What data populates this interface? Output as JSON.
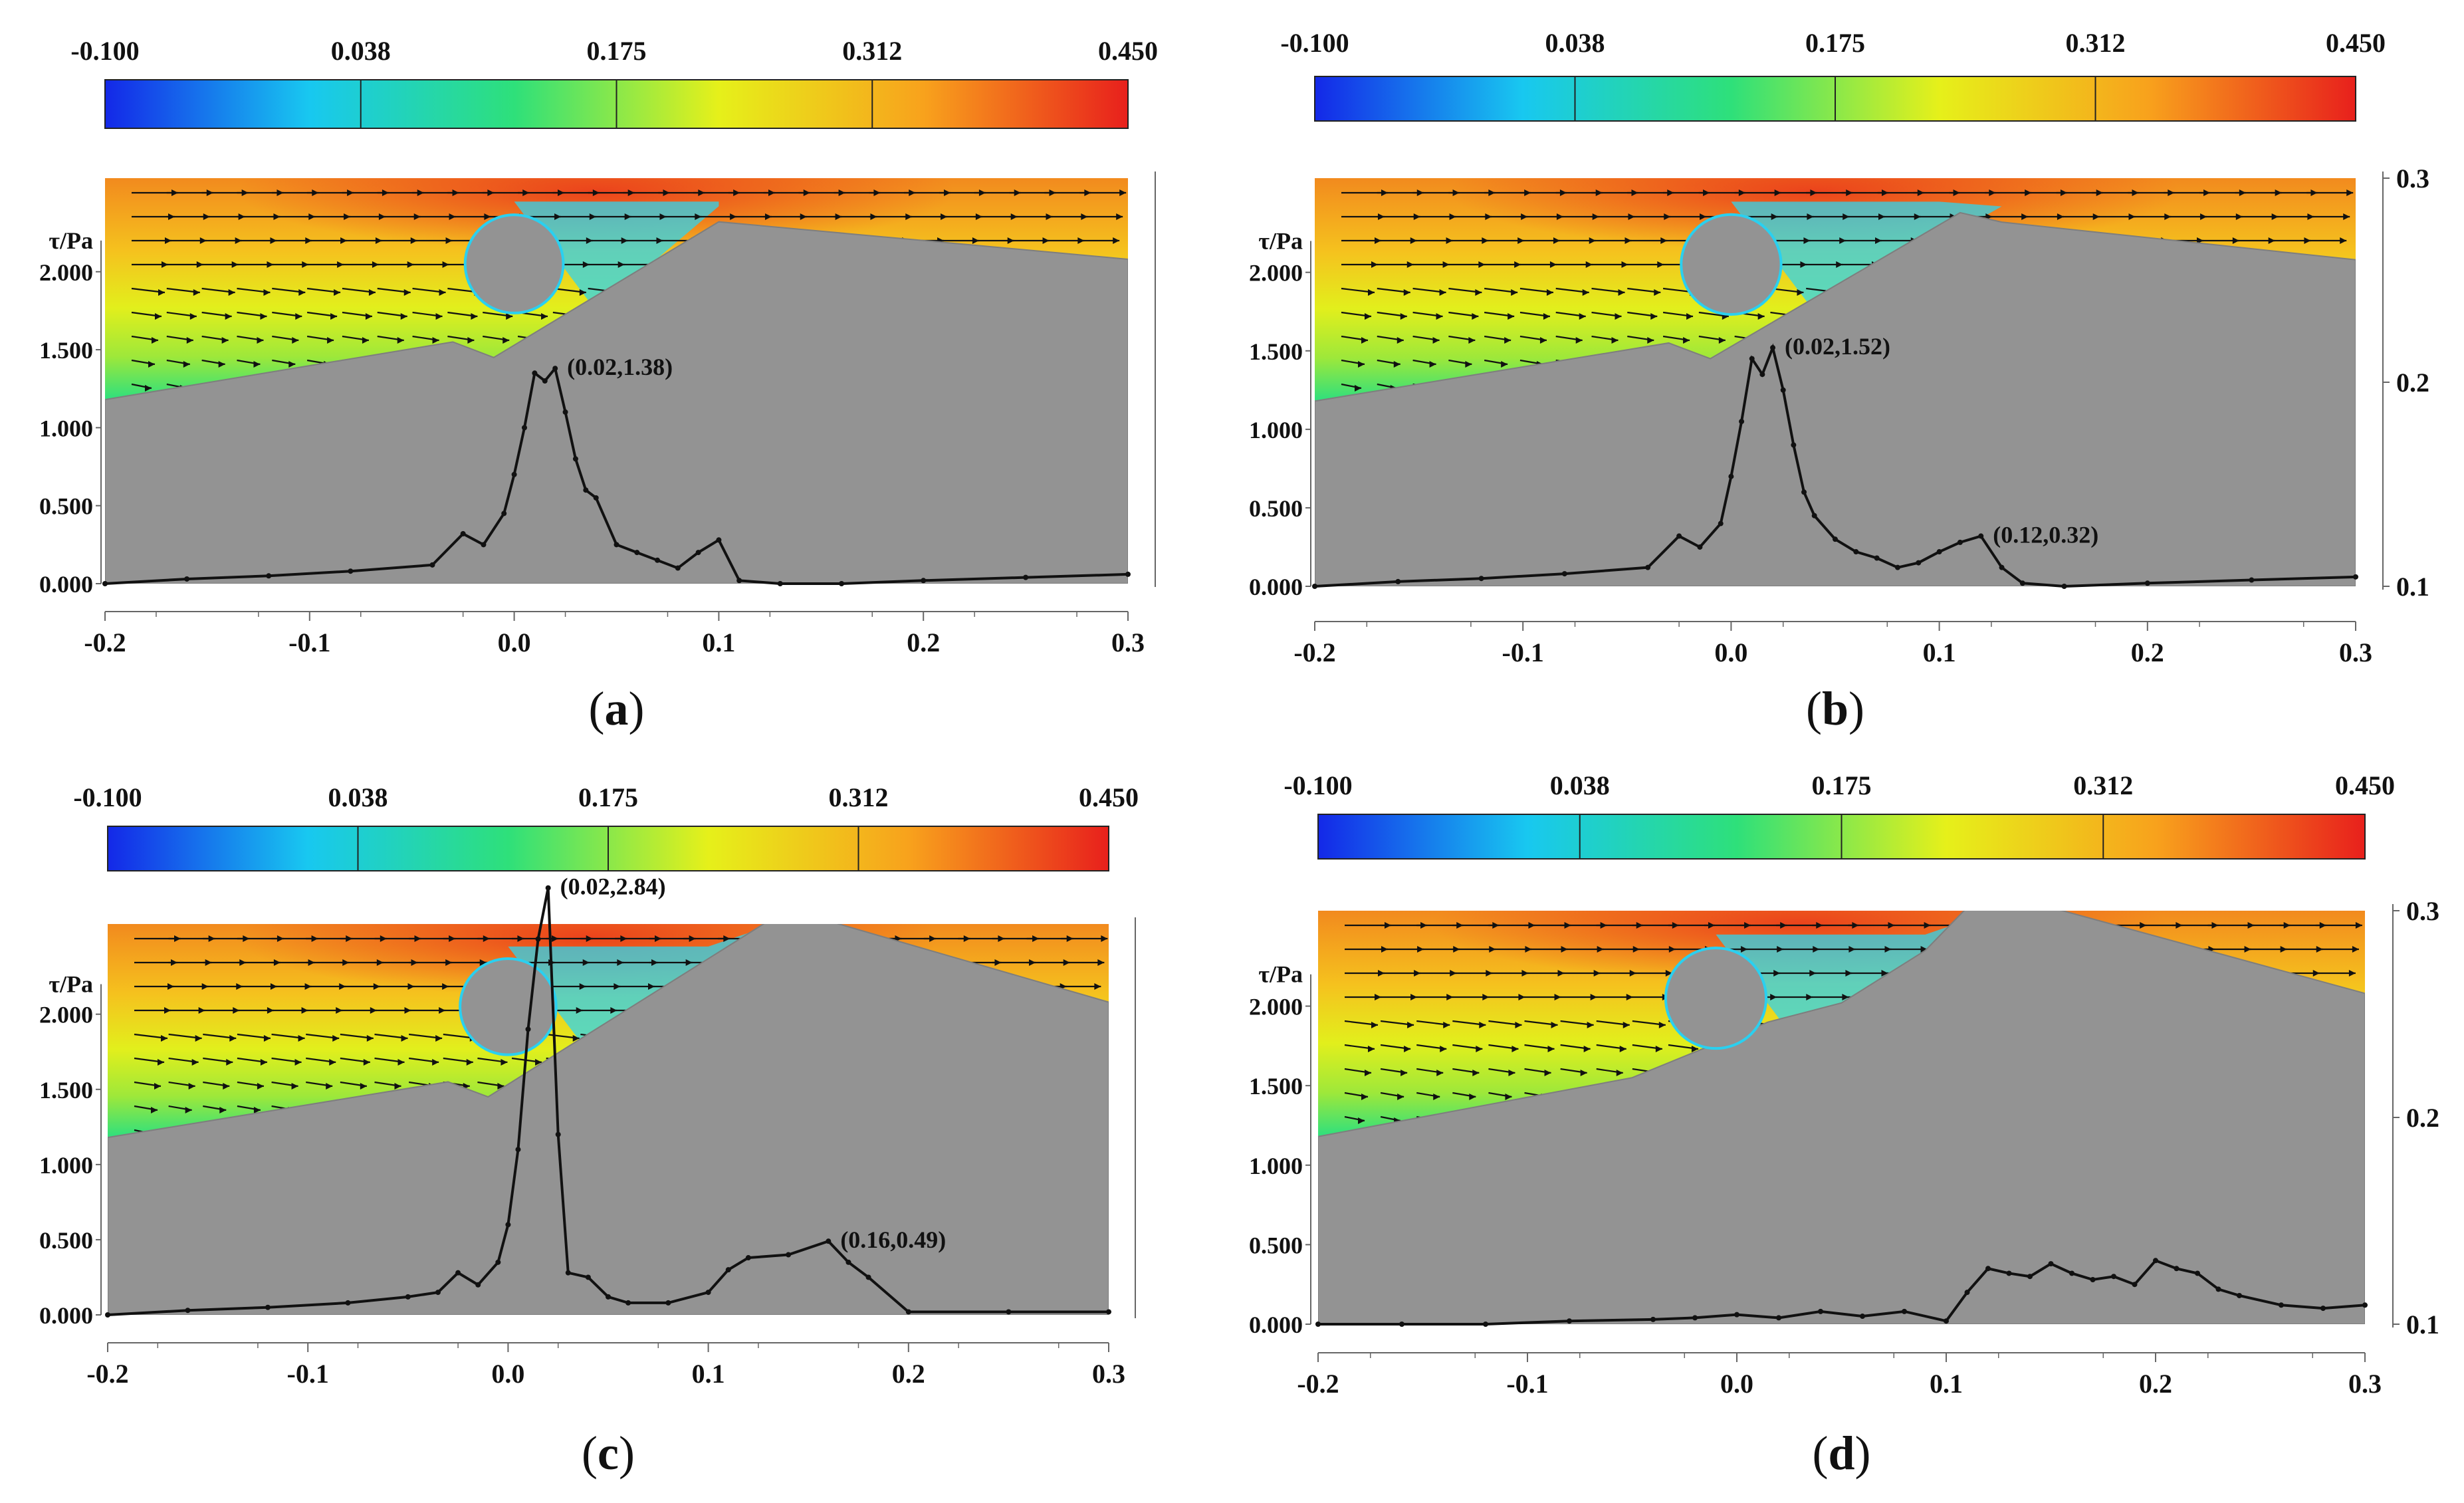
{
  "chart_data": [
    {
      "type": "line",
      "panel_label": "a",
      "colorbar": {
        "ticks": [
          "-0.100",
          "0.038",
          "0.175",
          "0.312",
          "0.450"
        ],
        "range": [
          -0.1,
          0.45
        ],
        "colors": [
          "#1428e8",
          "#18c8f0",
          "#2ee07a",
          "#e6f01a",
          "#f8a21c",
          "#e8201c"
        ]
      },
      "ylabel": "τ/Pa",
      "yticks": [
        "0.000",
        "0.500",
        "1.000",
        "1.500",
        "2.000"
      ],
      "ylim": [
        0,
        2.6
      ],
      "xticks": [
        "-0.2",
        "-0.1",
        "0.0",
        "0.1",
        "0.2",
        "0.3"
      ],
      "xlim": [
        -0.2,
        0.3
      ],
      "right_axis_ticks": [],
      "pipe": {
        "x": 0.0,
        "y": 2.05,
        "r": 0.024
      },
      "bed": {
        "x": [
          -0.2,
          -0.03,
          -0.01,
          0.1,
          0.3
        ],
        "z": [
          1.18,
          1.55,
          1.45,
          2.32,
          2.08
        ]
      },
      "annotations": [
        {
          "text": "(0.02,1.38)",
          "x": 0.02,
          "y": 1.38
        }
      ],
      "series": [
        {
          "name": "shear stress",
          "x": [
            -0.2,
            -0.16,
            -0.12,
            -0.08,
            -0.04,
            -0.025,
            -0.015,
            -0.005,
            0.0,
            0.005,
            0.01,
            0.015,
            0.02,
            0.025,
            0.03,
            0.035,
            0.04,
            0.05,
            0.06,
            0.07,
            0.08,
            0.09,
            0.1,
            0.11,
            0.13,
            0.16,
            0.2,
            0.25,
            0.3
          ],
          "y": [
            0.0,
            0.03,
            0.05,
            0.08,
            0.12,
            0.32,
            0.25,
            0.45,
            0.7,
            1.0,
            1.35,
            1.3,
            1.38,
            1.1,
            0.8,
            0.6,
            0.55,
            0.25,
            0.2,
            0.15,
            0.1,
            0.2,
            0.28,
            0.02,
            0.0,
            0.0,
            0.02,
            0.04,
            0.06
          ]
        }
      ]
    },
    {
      "type": "line",
      "panel_label": "b",
      "colorbar": {
        "ticks": [
          "-0.100",
          "0.038",
          "0.175",
          "0.312",
          "0.450"
        ],
        "range": [
          -0.1,
          0.45
        ],
        "colors": [
          "#1428e8",
          "#18c8f0",
          "#2ee07a",
          "#e6f01a",
          "#f8a21c",
          "#e8201c"
        ]
      },
      "ylabel": "τ/Pa",
      "yticks": [
        "0.000",
        "0.500",
        "1.000",
        "1.500",
        "2.000"
      ],
      "ylim": [
        0,
        2.6
      ],
      "xticks": [
        "-0.2",
        "-0.1",
        "0.0",
        "0.1",
        "0.2",
        "0.3"
      ],
      "xlim": [
        -0.2,
        0.3
      ],
      "right_axis_ticks": [
        "0.1",
        "0.2",
        "0.3"
      ],
      "pipe": {
        "x": 0.0,
        "y": 2.05,
        "r": 0.024
      },
      "bed": {
        "x": [
          -0.2,
          -0.03,
          -0.01,
          0.11,
          0.13,
          0.3
        ],
        "z": [
          1.18,
          1.55,
          1.45,
          2.38,
          2.32,
          2.08
        ]
      },
      "annotations": [
        {
          "text": "(0.02,1.52)",
          "x": 0.02,
          "y": 1.52
        },
        {
          "text": "(0.12,0.32)",
          "x": 0.12,
          "y": 0.32
        }
      ],
      "series": [
        {
          "name": "shear stress",
          "x": [
            -0.2,
            -0.16,
            -0.12,
            -0.08,
            -0.04,
            -0.025,
            -0.015,
            -0.005,
            0.0,
            0.005,
            0.01,
            0.015,
            0.02,
            0.025,
            0.03,
            0.035,
            0.04,
            0.05,
            0.06,
            0.07,
            0.08,
            0.09,
            0.1,
            0.11,
            0.12,
            0.13,
            0.14,
            0.16,
            0.2,
            0.25,
            0.3
          ],
          "y": [
            0.0,
            0.03,
            0.05,
            0.08,
            0.12,
            0.32,
            0.25,
            0.4,
            0.7,
            1.05,
            1.45,
            1.35,
            1.52,
            1.25,
            0.9,
            0.6,
            0.45,
            0.3,
            0.22,
            0.18,
            0.12,
            0.15,
            0.22,
            0.28,
            0.32,
            0.12,
            0.02,
            0.0,
            0.02,
            0.04,
            0.06
          ]
        }
      ]
    },
    {
      "type": "line",
      "panel_label": "c",
      "colorbar": {
        "ticks": [
          "-0.100",
          "0.038",
          "0.175",
          "0.312",
          "0.450"
        ],
        "range": [
          -0.1,
          0.45
        ],
        "colors": [
          "#1428e8",
          "#18c8f0",
          "#2ee07a",
          "#e6f01a",
          "#f8a21c",
          "#e8201c"
        ]
      },
      "ylabel": "τ/Pa",
      "yticks": [
        "0.000",
        "0.500",
        "1.000",
        "1.500",
        "2.000"
      ],
      "ylim": [
        0,
        2.6
      ],
      "xticks": [
        "-0.2",
        "-0.1",
        "0.0",
        "0.1",
        "0.2",
        "0.3"
      ],
      "xlim": [
        -0.2,
        0.3
      ],
      "right_axis_ticks": [],
      "pipe": {
        "x": 0.0,
        "y": 2.05,
        "r": 0.024
      },
      "bed": {
        "x": [
          -0.2,
          -0.03,
          -0.01,
          0.13,
          0.16,
          0.3
        ],
        "z": [
          1.18,
          1.55,
          1.45,
          2.62,
          2.62,
          2.08
        ]
      },
      "annotations": [
        {
          "text": "(0.02,2.84)",
          "x": 0.02,
          "y": 2.84
        },
        {
          "text": "(0.16,0.49)",
          "x": 0.16,
          "y": 0.49
        }
      ],
      "series": [
        {
          "name": "shear stress",
          "x": [
            -0.2,
            -0.16,
            -0.12,
            -0.08,
            -0.05,
            -0.035,
            -0.025,
            -0.015,
            -0.005,
            0.0,
            0.005,
            0.01,
            0.015,
            0.02,
            0.025,
            0.03,
            0.04,
            0.05,
            0.06,
            0.08,
            0.1,
            0.11,
            0.12,
            0.14,
            0.16,
            0.17,
            0.18,
            0.2,
            0.25,
            0.3
          ],
          "y": [
            0.0,
            0.03,
            0.05,
            0.08,
            0.12,
            0.15,
            0.28,
            0.2,
            0.35,
            0.6,
            1.1,
            1.9,
            2.5,
            2.84,
            1.2,
            0.28,
            0.25,
            0.12,
            0.08,
            0.08,
            0.15,
            0.3,
            0.38,
            0.4,
            0.49,
            0.35,
            0.25,
            0.02,
            0.02,
            0.02
          ]
        }
      ]
    },
    {
      "type": "line",
      "panel_label": "d",
      "colorbar": {
        "ticks": [
          "-0.100",
          "0.038",
          "0.175",
          "0.312",
          "0.450"
        ],
        "range": [
          -0.1,
          0.45
        ],
        "colors": [
          "#1428e8",
          "#18c8f0",
          "#2ee07a",
          "#e6f01a",
          "#f8a21c",
          "#e8201c"
        ]
      },
      "ylabel": "τ/Pa",
      "yticks": [
        "0.000",
        "0.500",
        "1.000",
        "1.500",
        "2.000"
      ],
      "ylim": [
        0,
        2.6
      ],
      "xticks": [
        "-0.2",
        "-0.1",
        "0.0",
        "0.1",
        "0.2",
        "0.3"
      ],
      "xlim": [
        -0.2,
        0.3
      ],
      "right_axis_ticks": [
        "0.1",
        "0.2",
        "0.3"
      ],
      "pipe": {
        "x": -0.01,
        "y": 2.05,
        "r": 0.024
      },
      "bed": {
        "x": [
          -0.2,
          -0.05,
          0.015,
          0.05,
          0.09,
          0.11,
          0.15,
          0.3
        ],
        "z": [
          1.18,
          1.55,
          1.9,
          2.02,
          2.35,
          2.62,
          2.62,
          2.08
        ]
      },
      "annotations": [],
      "series": [
        {
          "name": "shear stress",
          "x": [
            -0.2,
            -0.16,
            -0.12,
            -0.08,
            -0.04,
            -0.02,
            0.0,
            0.02,
            0.04,
            0.06,
            0.08,
            0.1,
            0.11,
            0.12,
            0.13,
            0.14,
            0.15,
            0.16,
            0.17,
            0.18,
            0.19,
            0.2,
            0.21,
            0.22,
            0.23,
            0.24,
            0.26,
            0.28,
            0.3
          ],
          "y": [
            0.0,
            0.0,
            0.0,
            0.02,
            0.03,
            0.04,
            0.06,
            0.04,
            0.08,
            0.05,
            0.08,
            0.02,
            0.2,
            0.35,
            0.32,
            0.3,
            0.38,
            0.32,
            0.28,
            0.3,
            0.25,
            0.4,
            0.35,
            0.32,
            0.22,
            0.18,
            0.12,
            0.1,
            0.12
          ]
        }
      ]
    }
  ]
}
